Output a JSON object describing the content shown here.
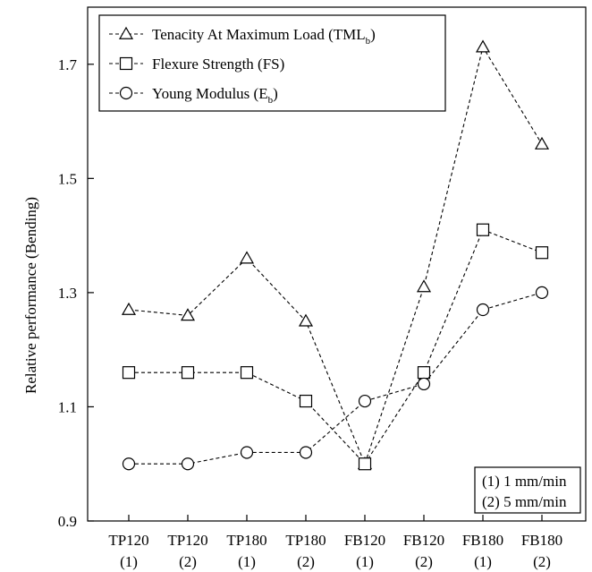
{
  "chart_data": {
    "type": "line",
    "ylabel": "Relative performance (Bending)",
    "xlabel": "",
    "ylim": [
      0.9,
      1.8
    ],
    "yticks": [
      "0.9",
      "1.1",
      "1.3",
      "1.5",
      "1.7"
    ],
    "categories": [
      [
        "TP120",
        "(1)"
      ],
      [
        "TP120",
        "(2)"
      ],
      [
        "TP180",
        "(1)"
      ],
      [
        "TP180",
        "(2)"
      ],
      [
        "FB120",
        "(1)"
      ],
      [
        "FB120",
        "(2)"
      ],
      [
        "FB180",
        "(1)"
      ],
      [
        "FB180",
        "(2)"
      ]
    ],
    "series": [
      {
        "name": "Tenacity At Maximum Load (TML",
        "sub": "b",
        "close": ")",
        "marker": "triangle",
        "values": [
          1.27,
          1.26,
          1.36,
          1.25,
          1.0,
          1.31,
          1.73,
          1.56
        ]
      },
      {
        "name": "Flexure Strength (FS)",
        "sub": "",
        "close": "",
        "marker": "square",
        "values": [
          1.16,
          1.16,
          1.16,
          1.11,
          1.0,
          1.16,
          1.41,
          1.37
        ]
      },
      {
        "name": "Young Modulus (E",
        "sub": "b",
        "close": ")",
        "marker": "circle",
        "values": [
          1.0,
          1.0,
          1.02,
          1.02,
          1.11,
          1.14,
          1.27,
          1.3
        ]
      }
    ],
    "legend_position": "top-left",
    "grid": false,
    "notes": [
      "(1) 1 mm/min",
      "(2) 5 mm/min"
    ],
    "line_style": "dashed",
    "color": "#000000"
  }
}
